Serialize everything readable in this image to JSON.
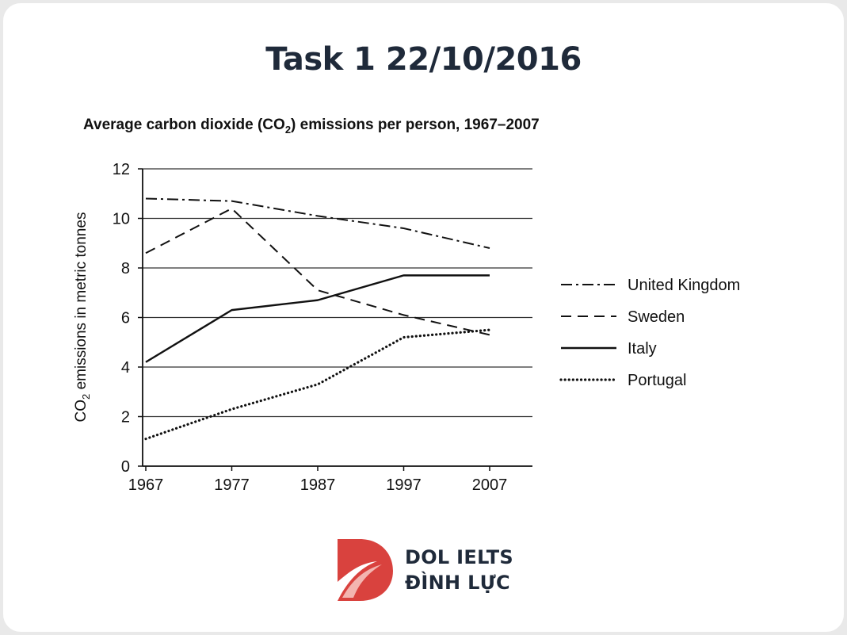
{
  "page": {
    "title": "Task 1 22/10/2016"
  },
  "colors": {
    "brand_red": "#d9423e",
    "text_dark": "#1f2a3a"
  },
  "logo": {
    "line1": "DOL IELTS",
    "line2": "ĐÌNH LỰC"
  },
  "chart_data": {
    "type": "line",
    "title_prefix": "Average carbon dioxide (CO",
    "title_sub": "2",
    "title_suffix": ") emissions per person, 1967–2007",
    "ylabel_prefix": "CO",
    "ylabel_sub": "2",
    "ylabel_suffix": " emissions in metric tonnes",
    "xlabel": "",
    "x": [
      "1967",
      "1977",
      "1987",
      "1997",
      "2007"
    ],
    "ylim": [
      0,
      12
    ],
    "yticks": [
      0,
      2,
      4,
      6,
      8,
      10,
      12
    ],
    "grid": true,
    "legend_position": "right",
    "series": [
      {
        "name": "United Kingdom",
        "values": [
          10.8,
          10.7,
          10.1,
          9.6,
          8.8
        ],
        "style": "dashdot"
      },
      {
        "name": "Sweden",
        "values": [
          8.6,
          10.4,
          7.1,
          6.1,
          5.3
        ],
        "style": "dashed"
      },
      {
        "name": "Italy",
        "values": [
          4.2,
          6.3,
          6.7,
          7.7,
          7.7
        ],
        "style": "solid"
      },
      {
        "name": "Portugal",
        "values": [
          1.1,
          2.3,
          3.3,
          5.2,
          5.5
        ],
        "style": "dotted"
      }
    ]
  }
}
